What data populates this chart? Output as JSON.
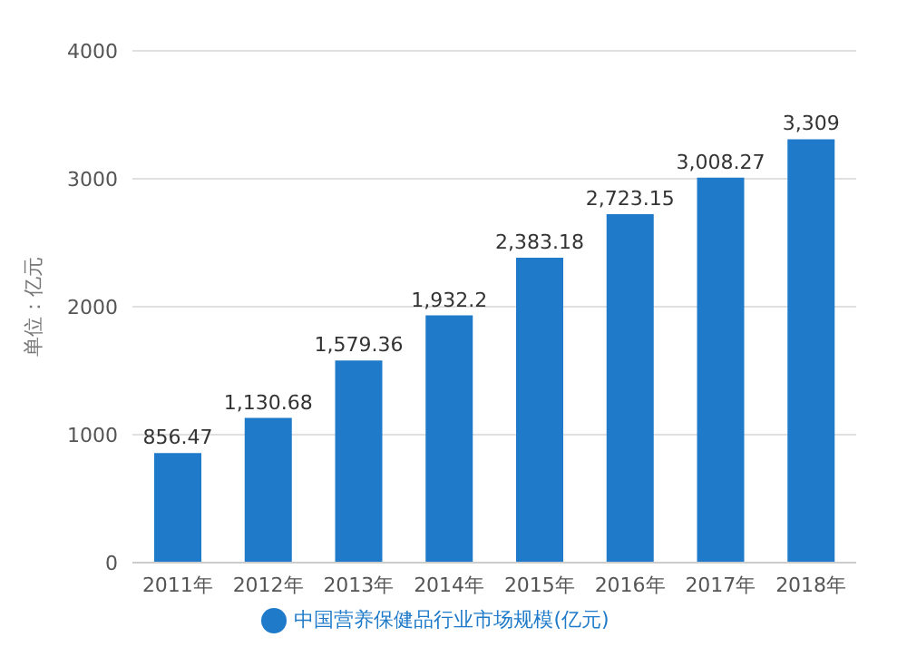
{
  "chart_data": {
    "type": "bar",
    "ylabel": "单位：亿元",
    "categories": [
      "2011年",
      "2012年",
      "2013年",
      "2014年",
      "2015年",
      "2016年",
      "2017年",
      "2018年"
    ],
    "series": [
      {
        "name": "中国营养保健品行业市场规模(亿元)",
        "color": "#1f7bc9",
        "values": [
          856.47,
          1130.68,
          1579.36,
          1932.2,
          2383.18,
          2723.15,
          3008.27,
          3309
        ],
        "value_labels": [
          "856.47",
          "1,130.68",
          "1,579.36",
          "1,932.2",
          "2,383.18",
          "2,723.15",
          "3,008.27",
          "3,309"
        ]
      }
    ],
    "ylim": [
      0,
      4000
    ],
    "yticks": [
      0,
      1000,
      2000,
      3000,
      4000
    ],
    "grid": "y",
    "legend": "bottom"
  }
}
